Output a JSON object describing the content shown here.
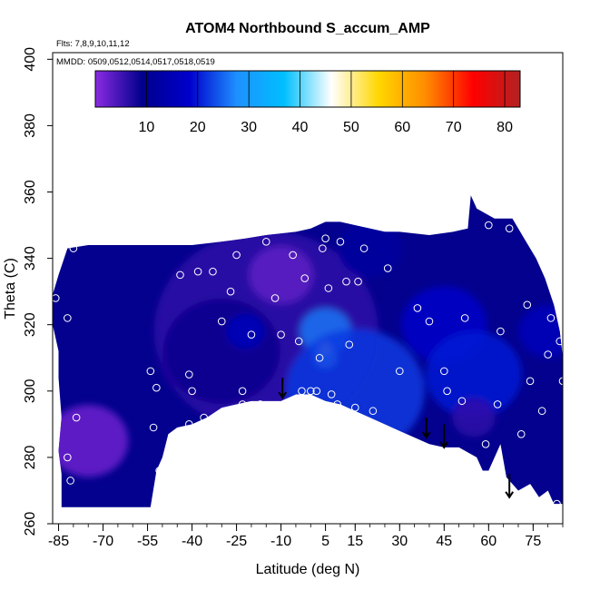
{
  "chart_data": {
    "type": "heatmap",
    "title": "ATOM4 Northbound S_accum_AMP",
    "info_lines": [
      "Flts: 7,8,9,10,11,12",
      "MMDD: 0509,0512,0514,0517,0518,0519"
    ],
    "xlabel": "Latitude (deg N)",
    "ylabel": "Theta (C)",
    "xlim": [
      -87,
      85
    ],
    "ylim": [
      260,
      402
    ],
    "x_ticks": [
      -85,
      -70,
      -55,
      -40,
      -25,
      -10,
      5,
      15,
      30,
      45,
      60,
      75
    ],
    "y_ticks": [
      260,
      280,
      300,
      320,
      340,
      360,
      380,
      400
    ],
    "colorbar": {
      "range": [
        0,
        83
      ],
      "ticks": [
        10,
        20,
        30,
        40,
        50,
        60,
        70,
        80
      ],
      "colors": [
        "#8a2be2",
        "#00008b",
        "#0000cd",
        "#1e90ff",
        "#00bfff",
        "#ffffff",
        "#ffd700",
        "#ff8c00",
        "#ff0000",
        "#b22222"
      ]
    },
    "coverage": [
      [
        -87,
        329
      ],
      [
        -85,
        335
      ],
      [
        -82,
        343
      ],
      [
        -75,
        344
      ],
      [
        -60,
        344
      ],
      [
        -50,
        344
      ],
      [
        -40,
        344
      ],
      [
        -30,
        345
      ],
      [
        -22,
        346
      ],
      [
        -15,
        347
      ],
      [
        -5,
        348
      ],
      [
        0,
        349
      ],
      [
        5,
        351
      ],
      [
        10,
        351
      ],
      [
        15,
        350
      ],
      [
        20,
        349
      ],
      [
        25,
        348
      ],
      [
        30,
        348
      ],
      [
        40,
        347
      ],
      [
        48,
        348
      ],
      [
        53,
        349
      ],
      [
        54,
        359
      ],
      [
        56,
        355
      ],
      [
        62,
        352
      ],
      [
        68,
        352
      ],
      [
        72,
        346
      ],
      [
        76,
        340
      ],
      [
        79,
        334
      ],
      [
        82,
        326
      ],
      [
        84,
        318
      ],
      [
        85,
        310
      ],
      [
        85,
        266
      ],
      [
        82,
        266
      ],
      [
        80,
        270
      ],
      [
        77,
        268
      ],
      [
        74,
        272
      ],
      [
        70,
        270
      ],
      [
        66,
        274
      ],
      [
        64,
        284
      ],
      [
        60,
        276
      ],
      [
        58,
        276
      ],
      [
        56,
        280
      ],
      [
        50,
        283
      ],
      [
        45,
        283
      ],
      [
        40,
        284
      ],
      [
        35,
        286
      ],
      [
        30,
        288
      ],
      [
        25,
        290
      ],
      [
        20,
        292
      ],
      [
        15,
        294
      ],
      [
        10,
        296
      ],
      [
        5,
        297
      ],
      [
        0,
        299
      ],
      [
        -5,
        299
      ],
      [
        -10,
        297
      ],
      [
        -15,
        297
      ],
      [
        -20,
        297
      ],
      [
        -25,
        296
      ],
      [
        -30,
        295
      ],
      [
        -35,
        292
      ],
      [
        -40,
        290
      ],
      [
        -45,
        289
      ],
      [
        -48,
        287
      ],
      [
        -50,
        280
      ],
      [
        -52,
        276
      ],
      [
        -54,
        265
      ],
      [
        -84,
        265
      ],
      [
        -84,
        275
      ],
      [
        -85,
        282
      ],
      [
        -84,
        292
      ],
      [
        -85,
        304
      ],
      [
        -85,
        312
      ],
      [
        -87,
        320
      ]
    ],
    "blobs": [
      {
        "x": -15,
        "y": 318,
        "r": 210,
        "value": 6
      },
      {
        "x": -30,
        "y": 312,
        "r": 110,
        "value": 9
      },
      {
        "x": 5,
        "y": 318,
        "r": 48,
        "value": 26
      },
      {
        "x": 5,
        "y": 310,
        "r": 22,
        "value": 40
      },
      {
        "x": 5,
        "y": 313,
        "r": 10,
        "value": 48
      },
      {
        "x": 15,
        "y": 300,
        "r": 130,
        "value": 22
      },
      {
        "x": 45,
        "y": 320,
        "r": 80,
        "value": 18
      },
      {
        "x": 55,
        "y": 305,
        "r": 90,
        "value": 20
      },
      {
        "x": 80,
        "y": 318,
        "r": 55,
        "value": 16
      },
      {
        "x": -22,
        "y": 318,
        "r": 36,
        "value": 16
      },
      {
        "x": 20,
        "y": 343,
        "r": 60,
        "value": 12
      },
      {
        "x": -75,
        "y": 285,
        "r": 75,
        "value": 2
      },
      {
        "x": -10,
        "y": 335,
        "r": 60,
        "value": 3
      },
      {
        "x": 55,
        "y": 292,
        "r": 40,
        "value": 6
      }
    ],
    "points": [
      [
        -86,
        328
      ],
      [
        -82,
        322
      ],
      [
        -80,
        343
      ],
      [
        -79,
        292
      ],
      [
        -82,
        280
      ],
      [
        -81,
        273
      ],
      [
        -54,
        306
      ],
      [
        -52,
        301
      ],
      [
        -53,
        289
      ],
      [
        -51,
        276
      ],
      [
        -47,
        280
      ],
      [
        -44,
        335
      ],
      [
        -41,
        305
      ],
      [
        -40,
        300
      ],
      [
        -41,
        290
      ],
      [
        -38,
        336
      ],
      [
        -36,
        292
      ],
      [
        -33,
        336
      ],
      [
        -30,
        321
      ],
      [
        -27,
        330
      ],
      [
        -25,
        341
      ],
      [
        -23,
        300
      ],
      [
        -23,
        296
      ],
      [
        -20,
        317
      ],
      [
        -17,
        296
      ],
      [
        -15,
        345
      ],
      [
        -12,
        328
      ],
      [
        -10,
        317
      ],
      [
        -6,
        341
      ],
      [
        -4,
        315
      ],
      [
        -3,
        300
      ],
      [
        -2,
        334
      ],
      [
        0,
        300
      ],
      [
        2,
        300
      ],
      [
        3,
        310
      ],
      [
        4,
        343
      ],
      [
        5,
        346
      ],
      [
        7,
        299
      ],
      [
        6,
        331
      ],
      [
        9,
        296
      ],
      [
        10,
        345
      ],
      [
        12,
        333
      ],
      [
        13,
        314
      ],
      [
        15,
        295
      ],
      [
        16,
        333
      ],
      [
        18,
        343
      ],
      [
        21,
        294
      ],
      [
        26,
        337
      ],
      [
        30,
        306
      ],
      [
        36,
        325
      ],
      [
        40,
        321
      ],
      [
        45,
        306
      ],
      [
        46,
        300
      ],
      [
        51,
        297
      ],
      [
        52,
        322
      ],
      [
        59,
        284
      ],
      [
        60,
        350
      ],
      [
        63,
        296
      ],
      [
        64,
        318
      ],
      [
        67,
        349
      ],
      [
        71,
        287
      ],
      [
        73,
        326
      ],
      [
        74,
        303
      ],
      [
        76,
        267
      ],
      [
        78,
        294
      ],
      [
        80,
        311
      ],
      [
        81,
        322
      ],
      [
        84,
        315
      ],
      [
        85,
        303
      ],
      [
        83,
        266
      ]
    ],
    "arrows": [
      {
        "x": -9.5,
        "y_from": 304,
        "y_to": 298
      },
      {
        "x": 39,
        "y_from": 292,
        "y_to": 286
      },
      {
        "x": 45,
        "y_from": 290,
        "y_to": 283
      },
      {
        "x": 67,
        "y_from": 275,
        "y_to": 268
      }
    ]
  }
}
